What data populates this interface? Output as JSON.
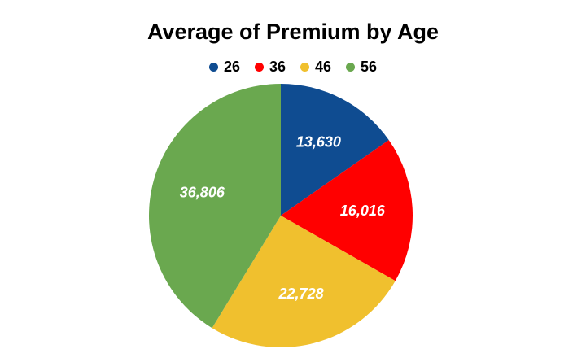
{
  "chart_data": {
    "type": "pie",
    "title": "Average of Premium by Age",
    "legend_position": "top",
    "categories": [
      "26",
      "36",
      "46",
      "56"
    ],
    "values": [
      13630,
      16016,
      22728,
      36806
    ],
    "value_labels": [
      "13,630",
      "16,016",
      "22,728",
      "36,806"
    ],
    "colors": [
      "#0f4c91",
      "#ff0000",
      "#f0c02e",
      "#6aa84f"
    ]
  }
}
